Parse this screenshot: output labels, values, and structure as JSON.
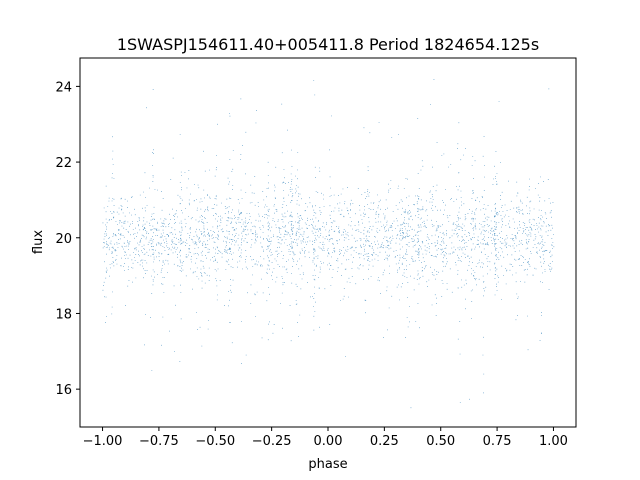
{
  "chart_data": {
    "type": "scatter",
    "title": "1SWASPJ154611.40+005411.8 Period 1824654.125s",
    "xlabel": "phase",
    "ylabel": "flux",
    "xlim": [
      -1.1,
      1.1
    ],
    "ylim": [
      15.0,
      24.75
    ],
    "x_ticks": [
      -1.0,
      -0.75,
      -0.5,
      -0.25,
      0.0,
      0.25,
      0.5,
      0.75,
      1.0
    ],
    "x_tick_labels": [
      "−1.00",
      "−0.75",
      "−0.50",
      "−0.25",
      "0.00",
      "0.25",
      "0.50",
      "0.75",
      "1.00"
    ],
    "y_ticks": [
      16,
      18,
      20,
      22,
      24
    ],
    "y_tick_labels": [
      "16",
      "18",
      "20",
      "22",
      "24"
    ],
    "grid": false,
    "legend": "none",
    "point_color": "#1f77b4",
    "series": [
      {
        "phase_range": [
          -1.0,
          1.0
        ],
        "flux_center": 20.0,
        "flux_core_range": [
          18.6,
          21.3
        ],
        "flux_full_range": [
          15.5,
          24.3
        ],
        "approx_points": 30000
      }
    ]
  }
}
